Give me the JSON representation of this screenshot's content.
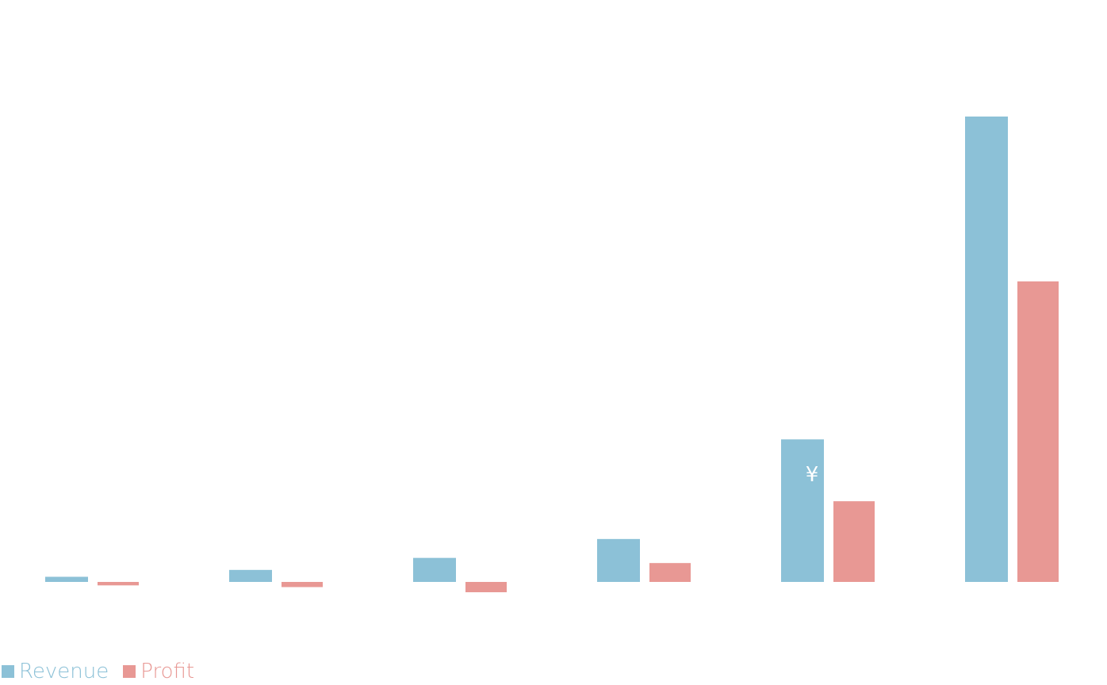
{
  "colors": {
    "revenue": "#8cc1d7",
    "profit": "#e89894",
    "currency_mark": "#ffffff"
  },
  "currency_mark": "¥",
  "chart_data": {
    "type": "bar",
    "title": "",
    "xlabel": "",
    "ylabel": "",
    "categories": [
      "",
      "",
      "",
      "",
      "",
      ""
    ],
    "series": [
      {
        "name": "Revenue",
        "values": [
          3,
          7,
          14,
          25,
          83,
          271
        ]
      },
      {
        "name": "Profit",
        "values": [
          -2,
          -3,
          -6,
          11,
          47,
          175
        ]
      }
    ],
    "ylim": [
      -10,
      325
    ],
    "grid": false,
    "axes_visible": false,
    "legend_position": "bottom-left"
  },
  "legend": {
    "items": [
      {
        "label": "Revenue"
      },
      {
        "label": "Profit"
      }
    ]
  }
}
